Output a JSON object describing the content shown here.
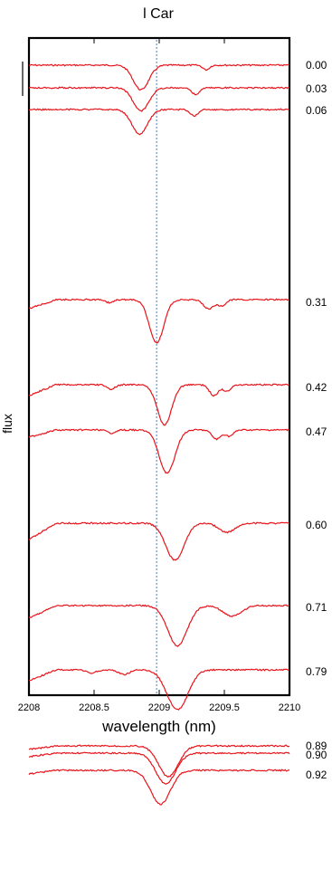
{
  "chart_data": {
    "type": "line",
    "title": "l Car",
    "xlabel": "wavelength (nm)",
    "ylabel": "flux",
    "xlim": [
      2208,
      2210
    ],
    "x_ticks": [
      2208,
      2208.5,
      2209,
      2209.5,
      2210
    ],
    "x_tick_labels": [
      "2208",
      "2208.5",
      "2209",
      "2209.5",
      "2210"
    ],
    "reference_line_x": 2208.98,
    "grid": false,
    "line_color": "#e8141b",
    "reference_color": "#3a7fd0",
    "series": [
      {
        "label": "0.00",
        "baseline": 0.1,
        "features": [
          {
            "center": 2208.86,
            "depth": 0.08,
            "width": 0.06
          },
          {
            "center": 2209.36,
            "depth": 0.015,
            "width": 0.025
          }
        ]
      },
      {
        "label": "0.03",
        "baseline": 0.16,
        "features": [
          {
            "center": 2208.86,
            "depth": 0.075,
            "width": 0.06
          },
          {
            "center": 2209.28,
            "depth": 0.022,
            "width": 0.03
          }
        ]
      },
      {
        "label": "0.06",
        "baseline": 0.19,
        "features": [
          {
            "center": 2208.85,
            "depth": 0.08,
            "width": 0.06
          },
          {
            "center": 2209.27,
            "depth": 0.02,
            "width": 0.03
          }
        ]
      },
      {
        "label": "0.31",
        "baseline": 1.0,
        "features": [
          {
            "center": 2208.98,
            "depth": 0.14,
            "width": 0.055
          },
          {
            "center": 2209.38,
            "depth": 0.03,
            "width": 0.04
          },
          {
            "center": 2209.48,
            "depth": 0.02,
            "width": 0.03
          },
          {
            "center": 2208.62,
            "depth": 0.01,
            "width": 0.03
          }
        ]
      },
      {
        "label": "0.42",
        "baseline": 1.1,
        "features": [
          {
            "center": 2209.04,
            "depth": 0.13,
            "width": 0.055
          },
          {
            "center": 2209.42,
            "depth": 0.035,
            "width": 0.035
          },
          {
            "center": 2209.52,
            "depth": 0.02,
            "width": 0.03
          },
          {
            "center": 2208.63,
            "depth": 0.015,
            "width": 0.03
          }
        ]
      },
      {
        "label": "0.47",
        "baseline": 1.1,
        "features": [
          {
            "center": 2209.06,
            "depth": 0.14,
            "width": 0.06
          },
          {
            "center": 2209.44,
            "depth": 0.03,
            "width": 0.035
          },
          {
            "center": 2209.54,
            "depth": 0.02,
            "width": 0.03
          },
          {
            "center": 2208.63,
            "depth": 0.01,
            "width": 0.03
          }
        ]
      },
      {
        "label": "0.60",
        "baseline": 1.0,
        "features": [
          {
            "center": 2209.12,
            "depth": 0.12,
            "width": 0.07
          },
          {
            "center": 2209.52,
            "depth": 0.03,
            "width": 0.06
          }
        ]
      },
      {
        "label": "0.71",
        "baseline": 1.0,
        "features": [
          {
            "center": 2209.14,
            "depth": 0.13,
            "width": 0.075
          },
          {
            "center": 2209.56,
            "depth": 0.035,
            "width": 0.07
          }
        ]
      },
      {
        "label": "0.79",
        "baseline": 1.0,
        "features": [
          {
            "center": 2209.14,
            "depth": 0.13,
            "width": 0.08
          },
          {
            "center": 2208.73,
            "depth": 0.015,
            "width": 0.04
          },
          {
            "center": 2208.48,
            "depth": 0.01,
            "width": 0.04
          }
        ]
      },
      {
        "label": "0.89",
        "baseline": 1.0,
        "features": [
          {
            "center": 2209.07,
            "depth": 0.1,
            "width": 0.075
          }
        ]
      },
      {
        "label": "0.90",
        "baseline": 1.0,
        "features": [
          {
            "center": 2209.05,
            "depth": 0.1,
            "width": 0.075
          }
        ]
      },
      {
        "label": "0.92",
        "baseline": 1.0,
        "features": [
          {
            "center": 2209.01,
            "depth": 0.11,
            "width": 0.075
          }
        ]
      }
    ]
  }
}
